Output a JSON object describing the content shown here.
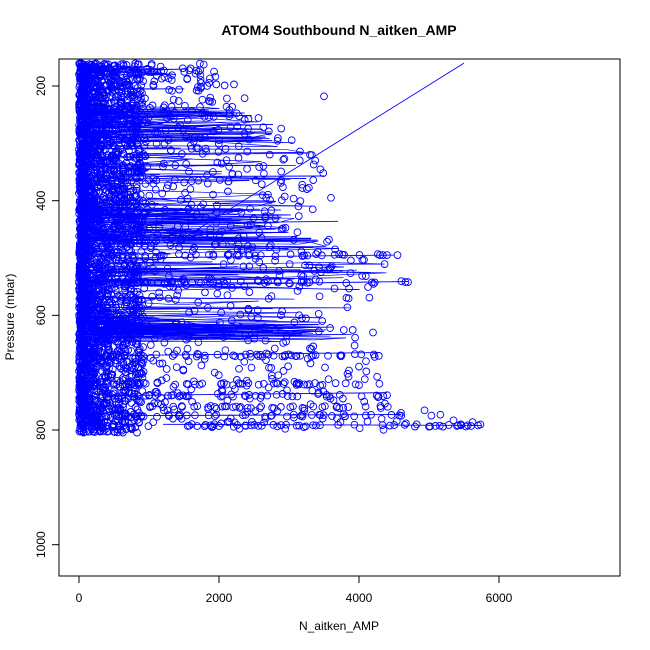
{
  "chart_data": {
    "type": "scatter",
    "title": "ATOM4 Southbound N_aitken_AMP",
    "xlabel": "N_aitken_AMP",
    "ylabel": "Pressure (mbar)",
    "xlim": [
      0,
      7700
    ],
    "ylim": [
      160,
      1050
    ],
    "y_reversed": true,
    "x_ticks": [
      0,
      2000,
      4000,
      6000
    ],
    "y_ticks": [
      200,
      400,
      600,
      800,
      1000
    ],
    "grid": false,
    "legend": "none",
    "marker": "open-circle",
    "color": "#0000ff",
    "density_summary": [
      {
        "pressure": 160,
        "x_max": 1800
      },
      {
        "pressure": 200,
        "x_max": 2300
      },
      {
        "pressure": 250,
        "x_max": 2600
      },
      {
        "pressure": 300,
        "x_max": 3200
      },
      {
        "pressure": 350,
        "x_max": 3600
      },
      {
        "pressure": 400,
        "x_max": 3600
      },
      {
        "pressure": 450,
        "x_max": 3000
      },
      {
        "pressure": 500,
        "x_max": 4600
      },
      {
        "pressure": 550,
        "x_max": 4700
      },
      {
        "pressure": 600,
        "x_max": 3700
      },
      {
        "pressure": 650,
        "x_max": 4300
      },
      {
        "pressure": 700,
        "x_max": 4300
      },
      {
        "pressure": 750,
        "x_max": 4500
      },
      {
        "pressure": 790,
        "x_max": 5750
      }
    ],
    "highlight_points": [
      {
        "x": 4300,
        "y": 495
      },
      {
        "x": 4400,
        "y": 495
      },
      {
        "x": 4550,
        "y": 495
      },
      {
        "x": 4700,
        "y": 542
      },
      {
        "x": 3600,
        "y": 395
      },
      {
        "x": 3500,
        "y": 218
      },
      {
        "x": 3300,
        "y": 320
      },
      {
        "x": 4200,
        "y": 630
      },
      {
        "x": 4100,
        "y": 680
      },
      {
        "x": 4600,
        "y": 770
      },
      {
        "x": 5700,
        "y": 792
      },
      {
        "x": 5600,
        "y": 793
      },
      {
        "x": 5400,
        "y": 793
      },
      {
        "x": 5200,
        "y": 794
      },
      {
        "x": 5000,
        "y": 794
      },
      {
        "x": 4800,
        "y": 794
      },
      {
        "x": 1900,
        "y": 795
      },
      {
        "x": 2000,
        "y": 793
      },
      {
        "x": 100,
        "y": 803
      },
      {
        "x": 200,
        "y": 803
      },
      {
        "x": 300,
        "y": 803
      },
      {
        "x": 400,
        "y": 803
      },
      {
        "x": 500,
        "y": 803
      }
    ],
    "highlight_lines": [
      {
        "x1": 5500,
        "y1": 160,
        "x2": 1300,
        "y2": 480
      },
      {
        "x1": 700,
        "y1": 500,
        "x2": 4500,
        "y2": 495
      },
      {
        "x1": 800,
        "y1": 548,
        "x2": 4700,
        "y2": 541
      },
      {
        "x1": 1200,
        "y1": 790,
        "x2": 5750,
        "y2": 792
      },
      {
        "x1": 600,
        "y1": 775,
        "x2": 4600,
        "y2": 773
      },
      {
        "x1": 600,
        "y1": 670,
        "x2": 4300,
        "y2": 665
      },
      {
        "x1": 400,
        "y1": 740,
        "x2": 4400,
        "y2": 735
      },
      {
        "x1": 1100,
        "y1": 358,
        "x2": 3500,
        "y2": 357
      },
      {
        "x1": 900,
        "y1": 318,
        "x2": 3200,
        "y2": 316
      },
      {
        "x1": 1100,
        "y1": 440,
        "x2": 3700,
        "y2": 436
      }
    ]
  }
}
